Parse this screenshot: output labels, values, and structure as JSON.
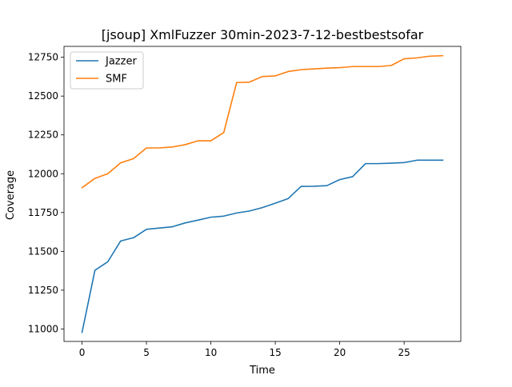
{
  "chart_data": {
    "type": "line",
    "title": "[jsoup] XmlFuzzer 30min-2023-7-12-bestbestsofar",
    "xlabel": "Time",
    "ylabel": "Coverage",
    "xlim": [
      -1.4,
      29.4
    ],
    "ylim": [
      10920,
      12820
    ],
    "xticks": [
      0,
      5,
      10,
      15,
      20,
      25
    ],
    "yticks": [
      11000,
      11250,
      11500,
      11750,
      12000,
      12250,
      12500,
      12750
    ],
    "grid": false,
    "legend_position": "top-left",
    "x": [
      0,
      1,
      2,
      3,
      4,
      5,
      6,
      7,
      8,
      9,
      10,
      11,
      12,
      13,
      14,
      15,
      16,
      17,
      18,
      19,
      20,
      21,
      22,
      23,
      24,
      25,
      26,
      27,
      28
    ],
    "series": [
      {
        "name": "Jazzer",
        "color": "#1f77b4",
        "values": [
          10978,
          11378,
          11433,
          11567,
          11588,
          11642,
          11650,
          11658,
          11683,
          11701,
          11720,
          11727,
          11747,
          11760,
          11782,
          11810,
          11840,
          11918,
          11919,
          11923,
          11962,
          11981,
          12065,
          12065,
          12068,
          12072,
          12087,
          12087,
          12087
        ]
      },
      {
        "name": "SMF",
        "color": "#ff7f0e",
        "values": [
          11910,
          11970,
          12000,
          12070,
          12097,
          12166,
          12166,
          12172,
          12187,
          12212,
          12212,
          12265,
          12587,
          12590,
          12626,
          12630,
          12658,
          12670,
          12675,
          12680,
          12683,
          12690,
          12690,
          12690,
          12697,
          12740,
          12746,
          12757,
          12760
        ]
      }
    ]
  }
}
